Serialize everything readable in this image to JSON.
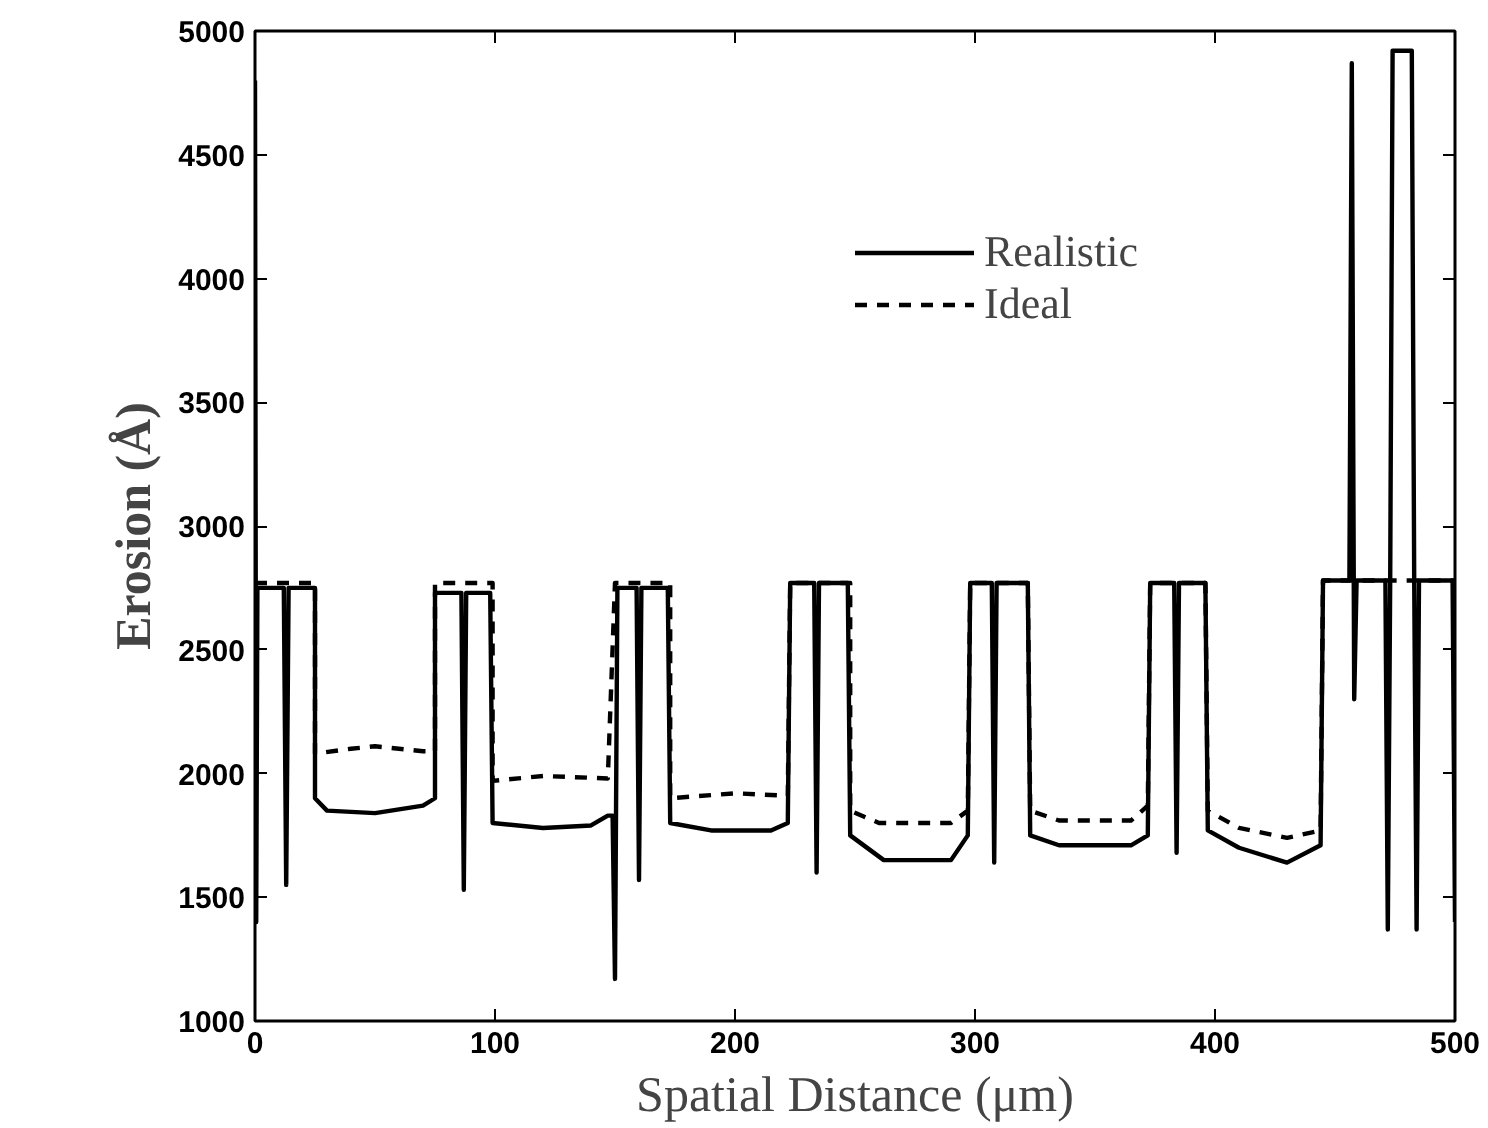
{
  "chart_data": {
    "type": "line",
    "xlabel": "Spatial Distance (μm)",
    "ylabel": "Erosion (Å)",
    "xlim": [
      0,
      500
    ],
    "ylim": [
      1000,
      5000
    ],
    "xticks": [
      0,
      100,
      200,
      300,
      400,
      500
    ],
    "yticks": [
      1000,
      1500,
      2000,
      2500,
      3000,
      3500,
      4000,
      4500,
      5000
    ],
    "grid": false,
    "legend": "top right",
    "marker": "none",
    "series": [
      {
        "name": "Realistic",
        "color": "#000000",
        "line_style": "solid",
        "x": [
          0,
          0.5,
          1,
          12,
          13,
          14,
          25,
          25,
          30,
          50,
          70,
          75,
          75,
          86,
          87,
          88,
          98,
          99,
          120,
          140,
          147,
          149,
          150,
          151,
          159,
          160,
          161,
          172,
          173,
          190,
          215,
          222,
          223,
          233,
          234,
          235,
          247,
          248,
          262,
          290,
          297,
          298,
          307,
          308,
          309,
          322,
          323,
          335,
          365,
          372,
          373,
          383,
          384,
          385,
          396,
          397,
          410,
          430,
          444,
          445,
          456,
          457,
          458,
          459,
          471,
          472,
          473,
          474,
          482,
          483,
          484,
          485,
          499,
          500
        ],
        "values": [
          4800,
          1400,
          2750,
          2750,
          1550,
          2750,
          2750,
          1900,
          1850,
          1840,
          1870,
          1900,
          2730,
          2730,
          1530,
          2730,
          2730,
          1800,
          1780,
          1790,
          1830,
          1830,
          1170,
          2750,
          2750,
          1570,
          2750,
          2750,
          1800,
          1770,
          1770,
          1800,
          2770,
          2770,
          1600,
          2770,
          2770,
          1750,
          1650,
          1650,
          1750,
          2770,
          2770,
          1640,
          2770,
          2770,
          1750,
          1710,
          1710,
          1750,
          2770,
          2770,
          1680,
          2770,
          2770,
          1770,
          1700,
          1640,
          1710,
          2780,
          2780,
          4870,
          2300,
          2780,
          2780,
          1370,
          2780,
          4920,
          4920,
          2780,
          1370,
          2780,
          2780,
          1400
        ]
      },
      {
        "name": "Ideal",
        "color": "#000000",
        "line_style": "dashed",
        "x": [
          0,
          25,
          25,
          40,
          50,
          70,
          75,
          75,
          99,
          99,
          120,
          147,
          150,
          173,
          173,
          200,
          222,
          223,
          248,
          248,
          260,
          290,
          297,
          298,
          322,
          323,
          335,
          365,
          372,
          373,
          396,
          397,
          410,
          430,
          444,
          445,
          500
        ],
        "values": [
          2770,
          2770,
          2080,
          2100,
          2110,
          2090,
          2090,
          2770,
          2770,
          1970,
          1990,
          1980,
          2770,
          2770,
          1900,
          1920,
          1910,
          2770,
          2770,
          1850,
          1800,
          1800,
          1850,
          2770,
          2770,
          1850,
          1810,
          1810,
          1870,
          2770,
          2770,
          1850,
          1780,
          1740,
          1770,
          2780,
          2780
        ]
      }
    ]
  }
}
